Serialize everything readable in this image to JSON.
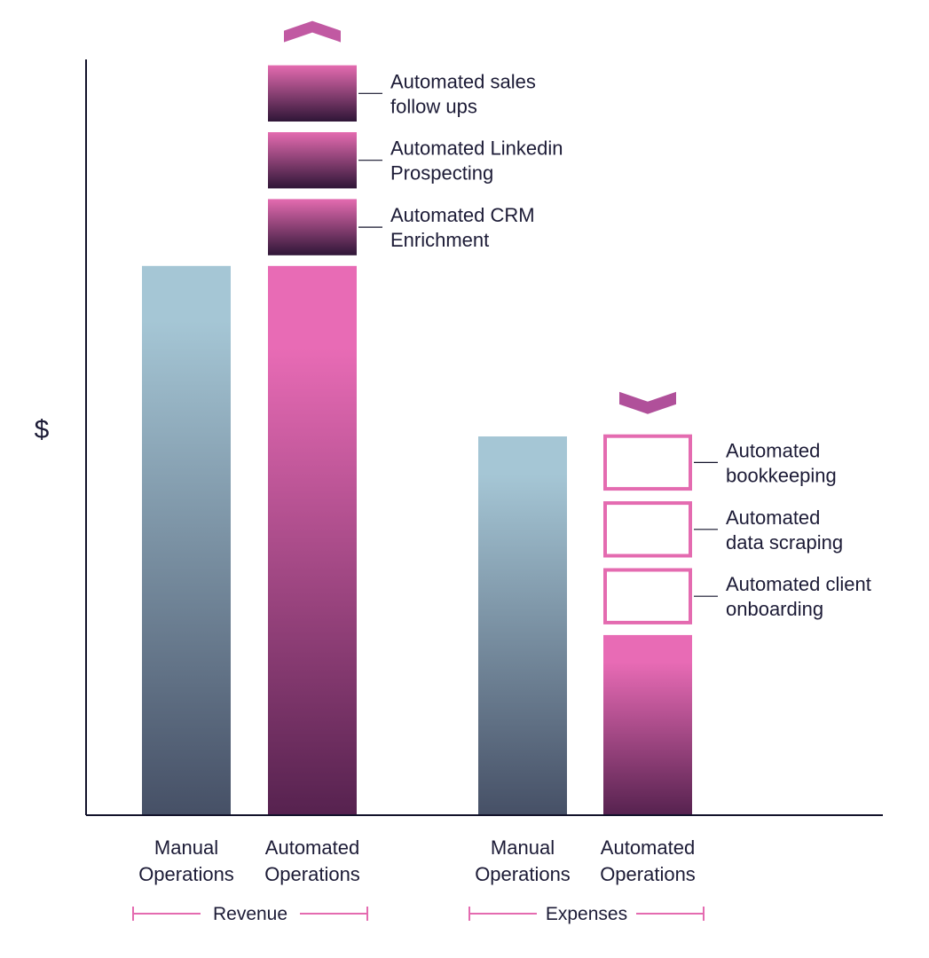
{
  "chart_data": {
    "type": "bar",
    "ylabel": "$",
    "groups": [
      {
        "name": "Revenue",
        "bars": [
          {
            "label_line1": "Manual",
            "label_line2": "Operations",
            "value": 625,
            "style": "manual"
          },
          {
            "label_line1": "Automated",
            "label_line2": "Operations",
            "value": 625,
            "style": "automated",
            "direction": "up",
            "stack": [
              {
                "line1": "Automated CRM",
                "line2": "Enrichment",
                "value": 64,
                "style": "filled"
              },
              {
                "line1": "Automated Linkedin",
                "line2": "Prospecting",
                "value": 64,
                "style": "filled"
              },
              {
                "line1": "Automated sales",
                "line2": "follow ups",
                "value": 64,
                "style": "filled"
              }
            ]
          }
        ]
      },
      {
        "name": "Expenses",
        "bars": [
          {
            "label_line1": "Manual",
            "label_line2": "Operations",
            "value": 431,
            "style": "manual"
          },
          {
            "label_line1": "Automated",
            "label_line2": "Operations",
            "value": 205,
            "style": "automated",
            "direction": "down",
            "stack": [
              {
                "line1": "Automated client",
                "line2": "onboarding",
                "value": 64,
                "style": "outline"
              },
              {
                "line1": "Automated",
                "line2": "data scraping",
                "value": 64,
                "style": "outline"
              },
              {
                "line1": "Automated",
                "line2": "bookkeeping",
                "value": 64,
                "style": "outline"
              }
            ]
          }
        ]
      }
    ],
    "ylim": [
      0,
      860
    ],
    "grid": false,
    "legend": "none",
    "colors": {
      "manual_top": "#a5c6d5",
      "manual_bottom": "#465066",
      "automated_top": "#e86bb5",
      "automated_bottom": "#56224f",
      "segment_top": "#e46bb0",
      "segment_bottom": "#2f1637",
      "outline": "#e46bb0",
      "axis": "#12122a",
      "bracket": "#e46bb0"
    }
  }
}
